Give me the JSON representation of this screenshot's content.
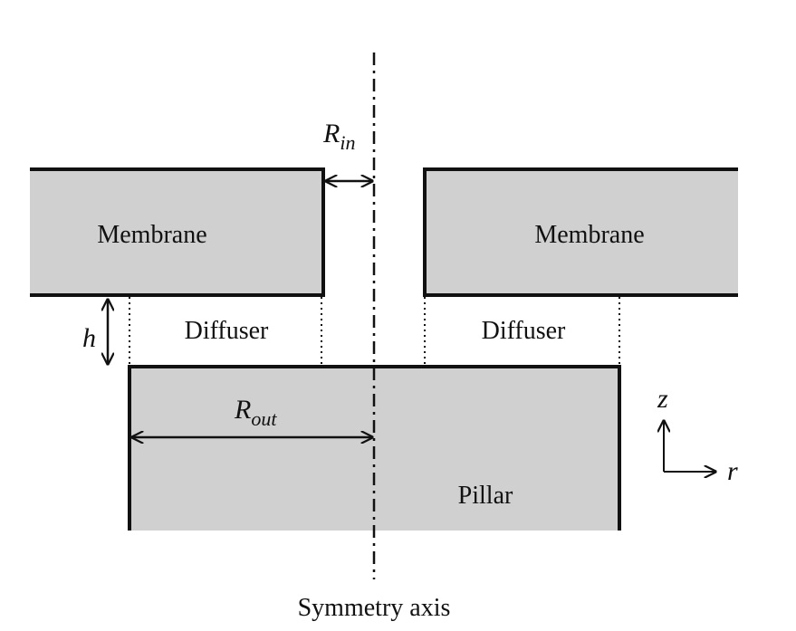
{
  "labels": {
    "membrane_left": "Membrane",
    "membrane_right": "Membrane",
    "diffuser_left": "Diffuser",
    "diffuser_right": "Diffuser",
    "pillar": "Pillar",
    "symmetry_axis": "Symmetry axis"
  },
  "symbols": {
    "r_in": {
      "main": "R",
      "sub": "in"
    },
    "r_out": {
      "main": "R",
      "sub": "out"
    },
    "h": "h",
    "z_axis": "z",
    "r_axis": "r"
  },
  "colors": {
    "fill": "#d0d0d0",
    "stroke": "#111111",
    "background": "#ffffff"
  }
}
